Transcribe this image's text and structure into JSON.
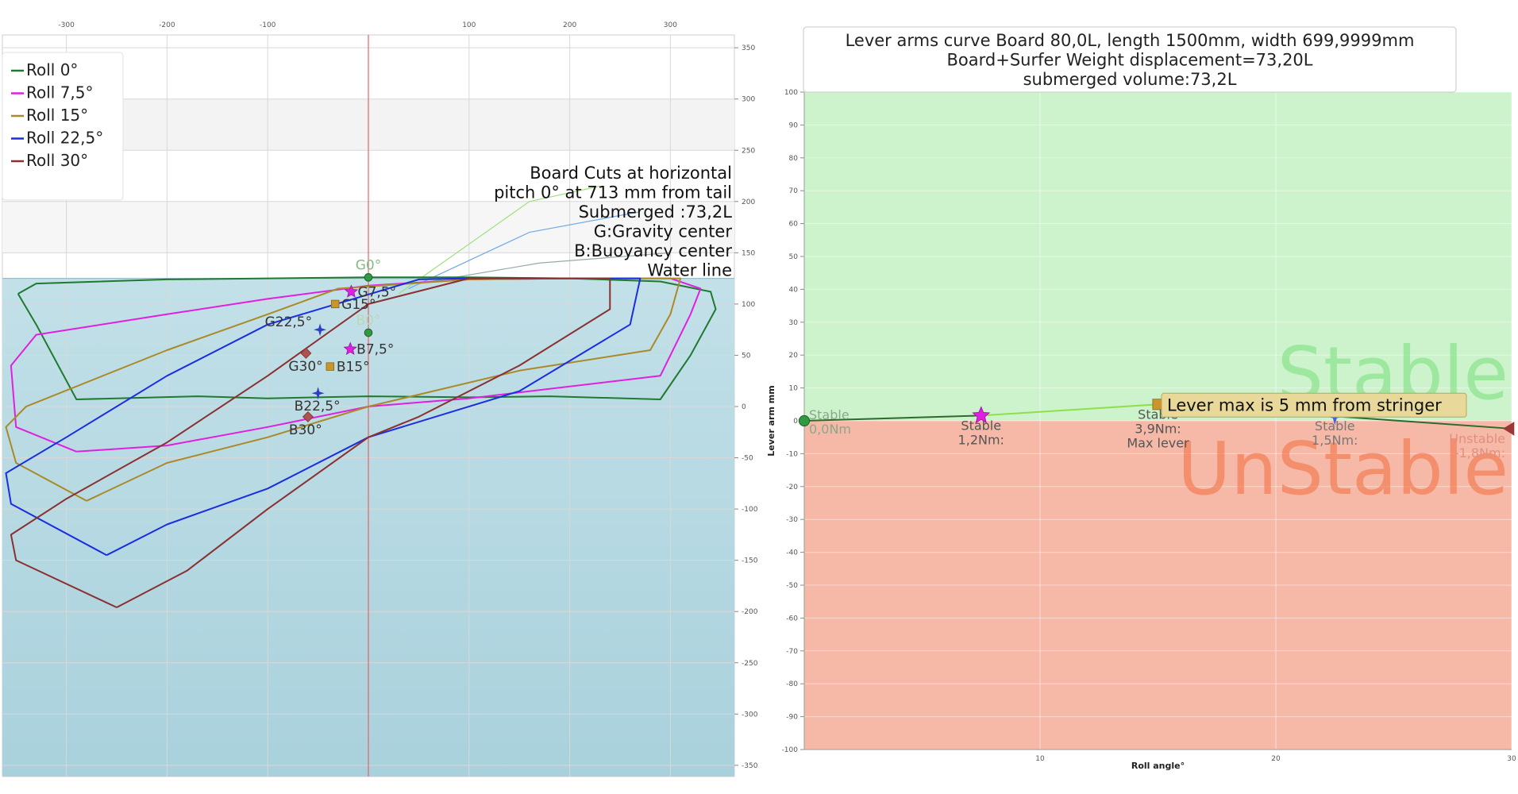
{
  "colors": {
    "water": "#c2e0e8",
    "water_dark": "#a9d1dc",
    "stable_fill": "#cdf3cd",
    "unstable_fill": "#f7b9a7",
    "waterline": "#e46464",
    "tooltip_bg": "#e8d99a"
  },
  "chart_data": [
    {
      "type": "line",
      "x_ticks": [
        "-300",
        "-200",
        "-100",
        "100",
        "200",
        "300"
      ],
      "y_ticks": [
        "350",
        "300",
        "250",
        "200",
        "150",
        "100",
        "50",
        "0",
        "-50",
        "-100",
        "-150",
        "-200",
        "-250",
        "-300",
        "-350"
      ],
      "xlim": [
        -362,
        362
      ],
      "ylim": [
        -362,
        362
      ],
      "legend": [
        "Roll 0°",
        "Roll 7,5°",
        "Roll 15°",
        "Roll 22,5°",
        "Roll 30°"
      ],
      "legend_position": "top-left",
      "series": [
        {
          "name": "Roll 0°",
          "color": "#1e7a2f",
          "points": [
            [
              -348,
              110
            ],
            [
              -330,
              120
            ],
            [
              -200,
              124
            ],
            [
              -100,
              125
            ],
            [
              0,
              126
            ],
            [
              100,
              126
            ],
            [
              200,
              125
            ],
            [
              290,
              122
            ],
            [
              340,
              112
            ],
            [
              345,
              95
            ],
            [
              320,
              50
            ],
            [
              290,
              7
            ],
            [
              180,
              10
            ],
            [
              100,
              9
            ],
            [
              0,
              10
            ],
            [
              -100,
              8
            ],
            [
              -170,
              10
            ],
            [
              -290,
              7
            ],
            [
              -330,
              80
            ],
            [
              -348,
              110
            ]
          ]
        },
        {
          "name": "Roll 7,5°",
          "color": "#e020e0",
          "points": [
            [
              -290,
              -44
            ],
            [
              -350,
              -20
            ],
            [
              -355,
              40
            ],
            [
              -330,
              70
            ],
            [
              -200,
              90
            ],
            [
              -100,
              105
            ],
            [
              0,
              118
            ],
            [
              100,
              124
            ],
            [
              200,
              125
            ],
            [
              300,
              125
            ],
            [
              330,
              115
            ],
            [
              320,
              90
            ],
            [
              290,
              30
            ],
            [
              100,
              8
            ],
            [
              0,
              0
            ],
            [
              -100,
              -20
            ],
            [
              -200,
              -38
            ],
            [
              -290,
              -44
            ]
          ]
        },
        {
          "name": "Roll 15°",
          "color": "#aa8a28",
          "points": [
            [
              -280,
              -92
            ],
            [
              -350,
              -55
            ],
            [
              -360,
              -20
            ],
            [
              -340,
              0
            ],
            [
              -200,
              55
            ],
            [
              -100,
              90
            ],
            [
              -30,
              115
            ],
            [
              100,
              124
            ],
            [
              200,
              125
            ],
            [
              310,
              125
            ],
            [
              300,
              90
            ],
            [
              280,
              55
            ],
            [
              150,
              35
            ],
            [
              0,
              0
            ],
            [
              -100,
              -30
            ],
            [
              -200,
              -55
            ],
            [
              -280,
              -92
            ]
          ]
        },
        {
          "name": "Roll 22,5°",
          "color": "#1a2ee0",
          "points": [
            [
              -260,
              -145
            ],
            [
              -355,
              -95
            ],
            [
              -360,
              -65
            ],
            [
              -300,
              -30
            ],
            [
              -200,
              30
            ],
            [
              -100,
              80
            ],
            [
              50,
              124
            ],
            [
              100,
              125
            ],
            [
              210,
              125
            ],
            [
              270,
              125
            ],
            [
              260,
              80
            ],
            [
              150,
              15
            ],
            [
              0,
              -30
            ],
            [
              -100,
              -80
            ],
            [
              -200,
              -115
            ],
            [
              -260,
              -145
            ]
          ]
        },
        {
          "name": "Roll 30°",
          "color": "#8a3030",
          "points": [
            [
              -250,
              -196
            ],
            [
              -350,
              -150
            ],
            [
              -355,
              -125
            ],
            [
              -300,
              -90
            ],
            [
              -200,
              -35
            ],
            [
              -100,
              30
            ],
            [
              0,
              100
            ],
            [
              100,
              125
            ],
            [
              240,
              125
            ],
            [
              240,
              95
            ],
            [
              150,
              40
            ],
            [
              50,
              -10
            ],
            [
              0,
              -30
            ],
            [
              -100,
              -100
            ],
            [
              -180,
              -160
            ],
            [
              -250,
              -196
            ]
          ]
        }
      ],
      "guide_lines": [
        {
          "color": "#9be07a",
          "points": [
            [
              30,
              110
            ],
            [
              160,
              200
            ],
            [
              230,
              215
            ]
          ]
        },
        {
          "color": "#6eaae8",
          "points": [
            [
              40,
              115
            ],
            [
              160,
              170
            ],
            [
              270,
              190
            ]
          ]
        },
        {
          "color": "#9aa8a8",
          "points": [
            [
              50,
              120
            ],
            [
              170,
              140
            ],
            [
              300,
              150
            ]
          ]
        }
      ],
      "waterline_y": 125,
      "vertical_line_x": 0,
      "markers": [
        {
          "label": "G0°",
          "x": 0,
          "y": 126,
          "shape": "circle",
          "color": "#2f9a3f",
          "label_color": "#88b888"
        },
        {
          "label": "B0°",
          "x": 0,
          "y": 72,
          "shape": "circle",
          "color": "#2f9a3f",
          "label_color": "#b8d8b8"
        },
        {
          "label": "G7,5°",
          "x": -17,
          "y": 112,
          "shape": "star",
          "color": "#e020e0",
          "label_color": "#333333"
        },
        {
          "label": "B7,5°",
          "x": -18,
          "y": 56,
          "shape": "star",
          "color": "#e020e0",
          "label_color": "#333333"
        },
        {
          "label": "G15°",
          "x": -33,
          "y": 100,
          "shape": "square",
          "color": "#c8962a",
          "label_color": "#333333"
        },
        {
          "label": "B15°",
          "x": -38,
          "y": 39,
          "shape": "square",
          "color": "#c8962a",
          "label_color": "#333333"
        },
        {
          "label": "G22,5°",
          "x": -48,
          "y": 75,
          "shape": "star4",
          "color": "#2a3ec8",
          "label_color": "#333333"
        },
        {
          "label": "B22,5°",
          "x": -50,
          "y": 13,
          "shape": "star4",
          "color": "#2a3ec8",
          "label_color": "#333333"
        },
        {
          "label": "G30°",
          "x": -62,
          "y": 52,
          "shape": "diamond",
          "color": "#b05050",
          "label_color": "#333333"
        },
        {
          "label": "B30°",
          "x": -60,
          "y": -10,
          "shape": "diamond",
          "color": "#b05050",
          "label_color": "#333333"
        }
      ],
      "annotations": [
        "Board Cuts at horizontal",
        "pitch 0° at 713 mm from tail",
        "Submerged :73,2L",
        "G:Gravity center",
        "B:Buoyancy center",
        "Water line"
      ]
    },
    {
      "type": "line",
      "title_lines": [
        "Lever arms curve Board 80,0L, length 1500mm, width 699,9999mm",
        "Board+Surfer Weight displacement=73,20L",
        "submerged volume:73,2L"
      ],
      "xlabel": "Roll angle°",
      "ylabel": "Lever arm mm",
      "xlim": [
        0,
        30
      ],
      "ylim": [
        -100,
        100
      ],
      "x_ticks": [
        "10",
        "20",
        "30"
      ],
      "y_ticks": [
        "100",
        "90",
        "80",
        "70",
        "60",
        "50",
        "40",
        "30",
        "20",
        "10",
        "0",
        "-10",
        "-20",
        "-30",
        "-40",
        "-50",
        "-60",
        "-70",
        "-80",
        "-90",
        "-100"
      ],
      "zone_labels": [
        "Stable",
        "UnStable"
      ],
      "series": [
        {
          "x": [
            0,
            7.5,
            15,
            22.5,
            30
          ],
          "y": [
            0,
            1.6,
            5,
            1.4,
            -2.4
          ]
        }
      ],
      "points": [
        {
          "x": 0,
          "y": 0,
          "shape": "circle",
          "color": "#2f9a3f",
          "lines": [
            "Stable",
            "0,0Nm"
          ],
          "label_color": "#8aa88a"
        },
        {
          "x": 7.5,
          "y": 1.6,
          "shape": "star",
          "color": "#e020e0",
          "lines": [
            "Stable",
            "1,2Nm:"
          ],
          "label_color": "#555555"
        },
        {
          "x": 15,
          "y": 5,
          "shape": "square",
          "color": "#c8962a",
          "lines": [
            "Stable",
            "3,9Nm:",
            "Max lever"
          ],
          "label_color": "#555555"
        },
        {
          "x": 22.5,
          "y": 1.4,
          "shape": "star4",
          "color": "#4a5ed8",
          "lines": [
            "Stable",
            "1,5Nm:"
          ],
          "label_color": "#777777"
        },
        {
          "x": 30,
          "y": -2.4,
          "shape": "triangle",
          "color": "#9a3838",
          "lines": [
            "Unstable",
            "-1,8Nm:"
          ],
          "label_color": "#e09080"
        }
      ],
      "tooltip": "Lever max is 5 mm from stringer"
    }
  ]
}
